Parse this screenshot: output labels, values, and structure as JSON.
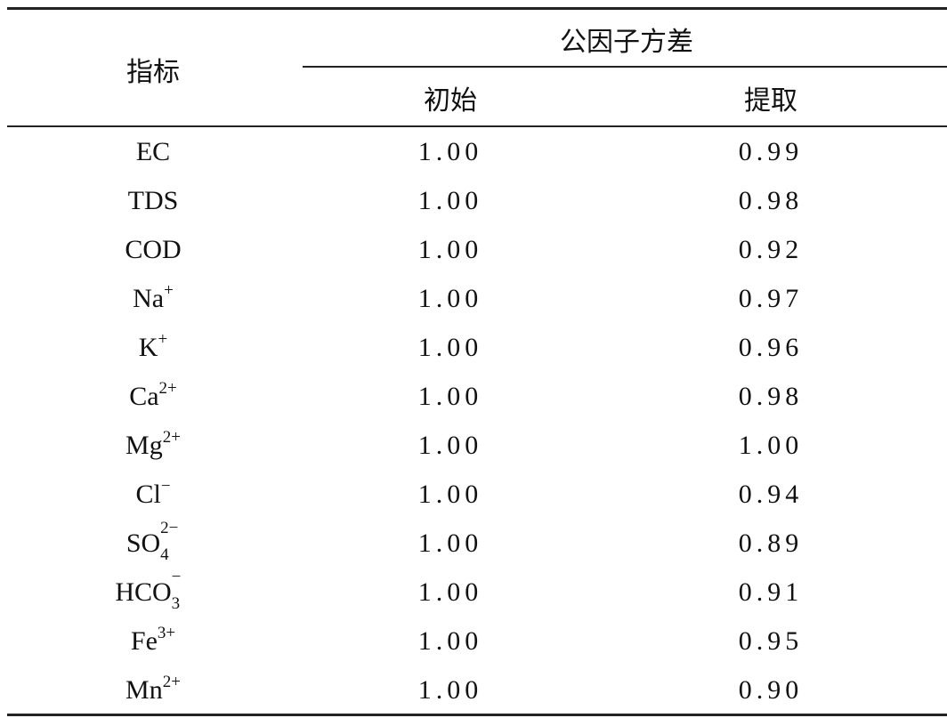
{
  "header": {
    "indicator": "指标",
    "group": "公因子方差",
    "initial": "初始",
    "extraction": "提取"
  },
  "rows": [
    {
      "base": "EC",
      "sup": "",
      "sub": "",
      "initial": "1.00",
      "extraction": "0.99"
    },
    {
      "base": "TDS",
      "sup": "",
      "sub": "",
      "initial": "1.00",
      "extraction": "0.98"
    },
    {
      "base": "COD",
      "sup": "",
      "sub": "",
      "initial": "1.00",
      "extraction": "0.92"
    },
    {
      "base": "Na",
      "sup": "+",
      "sub": "",
      "initial": "1.00",
      "extraction": "0.97"
    },
    {
      "base": "K",
      "sup": "+",
      "sub": "",
      "initial": "1.00",
      "extraction": "0.96"
    },
    {
      "base": "Ca",
      "sup": "2+",
      "sub": "",
      "initial": "1.00",
      "extraction": "0.98"
    },
    {
      "base": "Mg",
      "sup": "2+",
      "sub": "",
      "initial": "1.00",
      "extraction": "1.00"
    },
    {
      "base": "Cl",
      "sup": "−",
      "sub": "",
      "initial": "1.00",
      "extraction": "0.94"
    },
    {
      "base": "SO",
      "sup": "2−",
      "sub": "4",
      "initial": "1.00",
      "extraction": "0.89"
    },
    {
      "base": "HCO",
      "sup": "−",
      "sub": "3",
      "initial": "1.00",
      "extraction": "0.91"
    },
    {
      "base": "Fe",
      "sup": "3+",
      "sub": "",
      "initial": "1.00",
      "extraction": "0.95"
    },
    {
      "base": "Mn",
      "sup": "2+",
      "sub": "",
      "initial": "1.00",
      "extraction": "0.90"
    }
  ]
}
